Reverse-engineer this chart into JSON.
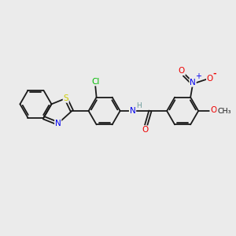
{
  "background_color": "#ebebeb",
  "bond_color": "#1a1a1a",
  "atom_colors": {
    "S": "#cccc00",
    "N": "#0000ee",
    "O": "#ee0000",
    "Cl": "#00bb00",
    "H": "#6a9a9a",
    "C": "#1a1a1a"
  },
  "figsize": [
    3.0,
    3.0
  ],
  "dpi": 100
}
